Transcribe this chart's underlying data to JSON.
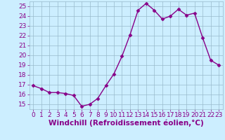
{
  "x": [
    0,
    1,
    2,
    3,
    4,
    5,
    6,
    7,
    8,
    9,
    10,
    11,
    12,
    13,
    14,
    15,
    16,
    17,
    18,
    19,
    20,
    21,
    22,
    23
  ],
  "y": [
    16.9,
    16.6,
    16.2,
    16.2,
    16.1,
    15.9,
    14.8,
    15.0,
    15.6,
    16.9,
    18.1,
    19.9,
    22.1,
    24.6,
    25.3,
    24.6,
    23.7,
    24.0,
    24.7,
    24.1,
    24.3,
    21.8,
    19.5,
    19.0
  ],
  "line_color": "#880088",
  "marker": "D",
  "marker_size": 2.5,
  "line_width": 1.0,
  "bg_color": "#cceeff",
  "grid_color": "#99bbcc",
  "xlabel": "Windchill (Refroidissement éolien,°C)",
  "xlabel_fontsize": 7.5,
  "tick_fontsize": 6.5,
  "ylim": [
    14.5,
    25.5
  ],
  "yticks": [
    15,
    16,
    17,
    18,
    19,
    20,
    21,
    22,
    23,
    24,
    25
  ],
  "xlim": [
    -0.5,
    23.5
  ],
  "xticks": [
    0,
    1,
    2,
    3,
    4,
    5,
    6,
    7,
    8,
    9,
    10,
    11,
    12,
    13,
    14,
    15,
    16,
    17,
    18,
    19,
    20,
    21,
    22,
    23
  ]
}
